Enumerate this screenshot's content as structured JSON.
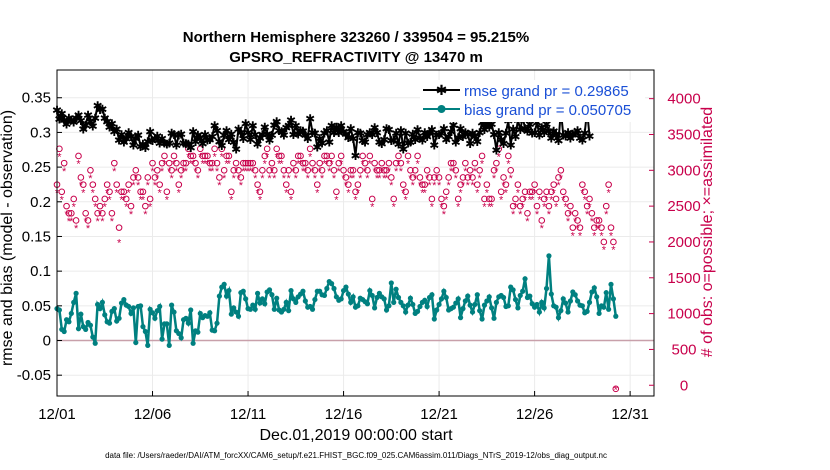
{
  "chart_data": {
    "type": "line",
    "title_line1": "Northern Hemisphere 323260 / 339504 = 95.215%",
    "title_line2": "GPSRO_REFRACTIVITY @ 13470 m",
    "xlabel": "Dec.01,2019 00:00:00 start",
    "ylabel_left": "rmse and bias (model - observation)",
    "ylabel_right": "# of obs: o=possible; ×=assimilated",
    "footnote": "data file: /Users/raeder/DAI/ATM_forcXX/CAM6_setup/f.e21.FHIST_BGC.f09_025.CAM6assim.011/Diags_NTrS_2019-12/obs_diag_output.nc",
    "xlim": [
      1,
      32.25
    ],
    "ylim_left": [
      -0.08,
      0.39
    ],
    "ylim_right": [
      -150,
      4400
    ],
    "x_ticks": [
      1,
      6,
      11,
      16,
      21,
      26,
      31
    ],
    "x_tick_labels": [
      "12/01",
      "12/06",
      "12/11",
      "12/16",
      "12/21",
      "12/26",
      "12/31"
    ],
    "y_left_ticks": [
      -0.05,
      0,
      0.05,
      0.1,
      0.15,
      0.2,
      0.25,
      0.3,
      0.35
    ],
    "y_left_tick_labels": [
      "-0.05",
      "0",
      "0.05",
      "0.1",
      "0.15",
      "0.2",
      "0.25",
      "0.3",
      "0.35"
    ],
    "y_right_ticks": [
      0,
      500,
      1000,
      1500,
      2000,
      2500,
      3000,
      3500,
      4000
    ],
    "y_right_tick_labels": [
      "0",
      "500",
      "1000",
      "1500",
      "2000",
      "2500",
      "3000",
      "3500",
      "4000"
    ],
    "legend": [
      "rmse grand pr = 0.29865",
      "bias grand pr = 0.050705"
    ],
    "colors": {
      "rmse": "#000000",
      "bias": "#008080",
      "obs": "#c8004b",
      "zero_line": "#c8a0aa"
    },
    "samples_per_day": 8,
    "series": [
      {
        "name": "rmse",
        "axis": "left",
        "x_start": 1,
        "x_step": 0.125,
        "values": [
          0.332,
          0.319,
          0.327,
          0.318,
          0.312,
          0.321,
          0.318,
          0.315,
          0.321,
          0.325,
          0.317,
          0.305,
          0.311,
          0.325,
          0.316,
          0.309,
          0.321,
          0.339,
          0.333,
          0.334,
          0.321,
          0.316,
          0.308,
          0.313,
          0.301,
          0.305,
          0.289,
          0.297,
          0.286,
          0.291,
          0.3,
          0.294,
          0.282,
          0.291,
          0.296,
          0.28,
          0.283,
          0.278,
          0.287,
          0.301,
          0.288,
          0.291,
          0.295,
          0.285,
          0.291,
          0.285,
          0.283,
          0.285,
          0.299,
          0.297,
          0.282,
          0.296,
          0.298,
          0.285,
          0.284,
          0.283,
          0.278,
          0.301,
          0.287,
          0.296,
          0.292,
          0.284,
          0.297,
          0.289,
          0.29,
          0.294,
          0.31,
          0.303,
          0.287,
          0.281,
          0.296,
          0.303,
          0.29,
          0.298,
          0.286,
          0.276,
          0.305,
          0.3,
          0.291,
          0.313,
          0.3,
          0.29,
          0.31,
          0.297,
          0.283,
          0.292,
          0.297,
          0.308,
          0.298,
          0.289,
          0.296,
          0.311,
          0.316,
          0.303,
          0.301,
          0.296,
          0.307,
          0.31,
          0.318,
          0.297,
          0.31,
          0.298,
          0.303,
          0.302,
          0.296,
          0.291,
          0.32,
          0.3,
          0.299,
          0.279,
          0.291,
          0.285,
          0.299,
          0.303,
          0.286,
          0.31,
          0.3,
          0.308,
          0.3,
          0.31,
          0.301,
          0.298,
          0.293,
          0.306,
          0.291,
          0.267,
          0.3,
          0.299,
          0.288,
          0.286,
          0.297,
          0.3,
          0.297,
          0.307,
          0.3,
          0.286,
          0.284,
          0.29,
          0.306,
          0.304,
          0.288,
          0.289,
          0.299,
          0.283,
          0.303,
          0.276,
          0.299,
          0.285,
          0.286,
          0.298,
          0.29,
          0.304,
          0.292,
          0.289,
          0.3,
          0.294,
          0.299,
          0.304,
          0.282,
          0.296,
          0.297,
          0.299,
          0.306,
          0.29,
          0.294,
          0.301,
          0.311,
          0.286,
          0.293,
          0.306,
          0.294,
          0.3,
          0.298,
          0.284,
          0.299,
          0.294,
          0.287,
          0.3,
          0.314,
          0.304,
          0.313,
          0.308,
          0.312,
          0.297,
          0.275,
          0.3,
          0.29,
          0.284,
          0.299,
          0.317,
          0.282,
          0.305,
          0.294,
          0.318,
          0.304,
          0.322,
          0.306,
          0.302,
          0.312,
          0.299,
          0.3,
          0.314,
          0.296,
          0.307,
          0.3,
          0.312,
          0.302,
          0.292,
          0.302,
          0.298,
          0.288,
          0.331,
          0.296,
          0.295,
          0.3,
          0.292,
          0.298,
          0.299,
          0.303,
          0.292,
          0.289,
          0.299,
          0.331,
          0.295
        ]
      },
      {
        "name": "bias",
        "axis": "left",
        "x_start": 1,
        "x_step": 0.125,
        "values": [
          0.046,
          0.044,
          0.016,
          0.013,
          0.03,
          0.027,
          0.039,
          0.055,
          0.068,
          0.017,
          0.038,
          0.02,
          0.016,
          0.026,
          0.022,
          0.005,
          -0.004,
          0.052,
          0.046,
          0.055,
          0.037,
          0.027,
          0.025,
          0.042,
          0.046,
          0.028,
          0.032,
          0.054,
          0.059,
          0.051,
          0.049,
          0.039,
          0.047,
          -0.003,
          0.049,
          0.05,
          0.02,
          0.013,
          -0.007,
          0.045,
          0.04,
          0.032,
          0.043,
          0.049,
          0.002,
          0.024,
          0.024,
          -0.007,
          0.051,
          0.041,
          0.014,
          0.01,
          0.004,
          0.03,
          0.032,
          0.025,
          0.044,
          -0.004,
          0.014,
          0.012,
          0.039,
          0.033,
          0.036,
          0.035,
          0.04,
          0.015,
          0.014,
          0.025,
          0.064,
          0.077,
          0.081,
          0.064,
          0.072,
          0.038,
          0.047,
          0.041,
          0.035,
          0.069,
          0.071,
          0.06,
          0.046,
          0.045,
          0.051,
          0.045,
          0.068,
          0.054,
          0.06,
          0.053,
          0.07,
          0.073,
          0.066,
          0.045,
          0.061,
          0.044,
          0.041,
          0.045,
          0.055,
          0.043,
          0.072,
          0.06,
          0.055,
          0.063,
          0.067,
          0.071,
          0.057,
          0.048,
          0.049,
          0.045,
          0.059,
          0.071,
          0.071,
          0.066,
          0.065,
          0.075,
          0.085,
          0.082,
          0.075,
          0.063,
          0.058,
          0.06,
          0.072,
          0.077,
          0.067,
          0.055,
          0.063,
          0.048,
          0.05,
          0.061,
          0.059,
          0.056,
          0.053,
          0.072,
          0.065,
          0.047,
          0.062,
          0.068,
          0.063,
          0.06,
          0.044,
          0.05,
          0.083,
          0.055,
          0.074,
          0.062,
          0.055,
          0.05,
          0.041,
          0.051,
          0.061,
          0.052,
          0.039,
          0.042,
          0.049,
          0.055,
          0.058,
          0.049,
          0.062,
          0.066,
          0.031,
          0.044,
          0.052,
          0.06,
          0.071,
          0.062,
          0.044,
          0.046,
          0.048,
          0.054,
          0.06,
          0.033,
          0.046,
          0.057,
          0.064,
          0.051,
          0.041,
          0.052,
          0.066,
          0.043,
          0.031,
          0.051,
          0.057,
          0.063,
          0.047,
          0.032,
          0.055,
          0.063,
          0.065,
          0.062,
          0.049,
          0.05,
          0.077,
          0.073,
          0.059,
          0.047,
          0.065,
          0.071,
          0.089,
          0.062,
          0.064,
          0.053,
          0.048,
          0.052,
          0.041,
          0.055,
          0.047,
          0.075,
          0.122,
          0.067,
          0.05,
          0.048,
          0.033,
          0.043,
          0.06,
          0.054,
          0.041,
          0.057,
          0.07,
          0.066,
          0.057,
          0.051,
          0.05,
          0.04,
          0.042,
          0.055,
          0.07,
          0.076,
          0.063,
          0.039,
          0.05,
          0.048,
          0.069,
          0.045,
          0.081,
          0.06,
          0.035
        ]
      },
      {
        "name": "possible",
        "axis": "right",
        "marker": "o",
        "x_start": 1,
        "x_step": 0.125,
        "values": [
          2800,
          3300,
          2700,
          3100,
          2500,
          2400,
          2400,
          2600,
          2300,
          3200,
          2900,
          2800,
          2400,
          2300,
          3000,
          2800,
          2600,
          2400,
          2500,
          2400,
          2600,
          2800,
          2700,
          2400,
          3100,
          2800,
          2200,
          2700,
          2700,
          2600,
          2800,
          2500,
          2900,
          3000,
          2900,
          2700,
          2700,
          2500,
          2900,
          2600,
          3100,
          2900,
          3000,
          2800,
          3100,
          3200,
          2700,
          3100,
          3000,
          3200,
          3100,
          2800,
          3000,
          3100,
          3100,
          3300,
          3200,
          3200,
          3100,
          3000,
          3300,
          3200,
          3200,
          3200,
          3100,
          3100,
          3300,
          3100,
          2900,
          3300,
          3000,
          3200,
          3200,
          2700,
          3000,
          3100,
          3000,
          2900,
          3100,
          3100,
          3100,
          3100,
          3100,
          3000,
          2800,
          2700,
          3000,
          3200,
          3300,
          3000,
          3100,
          3000,
          3300,
          3200,
          3200,
          3000,
          2800,
          3000,
          2700,
          3100,
          3000,
          3200,
          3200,
          3100,
          3100,
          3000,
          3300,
          3100,
          3000,
          2800,
          3100,
          3000,
          3200,
          3200,
          3100,
          3200,
          3000,
          2700,
          3100,
          3200,
          3000,
          2900,
          2800,
          3000,
          3000,
          2700,
          2800,
          3000,
          3200,
          3100,
          3000,
          3200,
          2600,
          3100,
          3000,
          3000,
          3100,
          3000,
          3000,
          3100,
          2900,
          2600,
          3100,
          3200,
          3100,
          2800,
          2700,
          3200,
          3000,
          2900,
          3000,
          3200,
          2900,
          2800,
          2800,
          3000,
          2900,
          2600,
          2900,
          3000,
          2900,
          2600,
          2500,
          2700,
          2900,
          3100,
          3100,
          3000,
          2600,
          2800,
          2900,
          3100,
          2900,
          3000,
          2900,
          3100,
          2800,
          3000,
          3200,
          2600,
          2800,
          2600,
          2600,
          3000,
          3100,
          3300,
          2700,
          2900,
          2800,
          3200,
          3000,
          2500,
          2600,
          2800,
          2500,
          2600,
          2700,
          2400,
          2700,
          2700,
          2800,
          2500,
          2700,
          2300,
          2600,
          2700,
          2500,
          2700,
          2800,
          2600,
          2900,
          3000,
          2700,
          2600,
          2400,
          2500,
          2200,
          2400,
          2300,
          2200,
          2800,
          2700,
          2500,
          2600,
          2400,
          2200,
          2300,
          2300,
          2200,
          2000,
          2500,
          2800,
          2200,
          2000,
          -50
        ]
      },
      {
        "name": "assimilated",
        "axis": "right",
        "marker": "x",
        "x_start": 1,
        "x_step": 0.125,
        "values": [
          2700,
          3200,
          2600,
          3000,
          2400,
          2300,
          2300,
          2500,
          2200,
          3100,
          2800,
          2700,
          2300,
          2200,
          2900,
          2700,
          2500,
          2300,
          2400,
          2300,
          2500,
          2700,
          2600,
          2300,
          3000,
          2700,
          2000,
          2600,
          2600,
          2500,
          2700,
          2400,
          2800,
          2900,
          2800,
          2600,
          2600,
          2400,
          2800,
          2500,
          3000,
          2800,
          2900,
          2700,
          3000,
          3100,
          2600,
          3000,
          2900,
          3100,
          3000,
          2700,
          2900,
          3000,
          3000,
          3200,
          3100,
          3100,
          3000,
          2900,
          3200,
          3100,
          3100,
          3100,
          3000,
          3000,
          3200,
          3000,
          2800,
          3200,
          2900,
          3100,
          3100,
          2600,
          2900,
          3000,
          2900,
          2800,
          3000,
          3000,
          3000,
          3000,
          3000,
          2900,
          2700,
          2600,
          2900,
          3100,
          3200,
          2900,
          3000,
          2900,
          3200,
          3100,
          3100,
          2900,
          2700,
          2900,
          2600,
          3000,
          2900,
          3100,
          3100,
          3000,
          3000,
          2900,
          3200,
          3000,
          2900,
          2700,
          3000,
          2900,
          3100,
          3100,
          3000,
          3100,
          2900,
          2600,
          3000,
          3100,
          2900,
          2800,
          2700,
          2900,
          2900,
          2600,
          2700,
          2900,
          3100,
          3000,
          2900,
          3100,
          2500,
          3000,
          2900,
          2900,
          3000,
          2900,
          2900,
          3000,
          2800,
          2500,
          3000,
          3100,
          3000,
          2700,
          2600,
          3100,
          2900,
          2800,
          2900,
          3100,
          2800,
          2700,
          2700,
          2900,
          2800,
          2500,
          2800,
          2900,
          2800,
          2500,
          2400,
          2600,
          2800,
          3000,
          3000,
          2900,
          2500,
          2700,
          2800,
          3000,
          2800,
          2900,
          2800,
          3000,
          2700,
          2900,
          3100,
          2500,
          2700,
          2500,
          2500,
          2900,
          3000,
          3200,
          2600,
          2800,
          2700,
          3100,
          2900,
          2400,
          2500,
          2700,
          2400,
          2500,
          2600,
          2300,
          2600,
          2600,
          2700,
          2400,
          2600,
          2200,
          2500,
          2600,
          2400,
          2600,
          2700,
          2500,
          2800,
          2900,
          2600,
          2500,
          2300,
          2400,
          2100,
          2300,
          2200,
          2100,
          2700,
          2600,
          2400,
          2500,
          2300,
          2100,
          2200,
          2200,
          2100,
          1900,
          2400,
          2700,
          2100,
          1900,
          -50
        ]
      }
    ]
  }
}
